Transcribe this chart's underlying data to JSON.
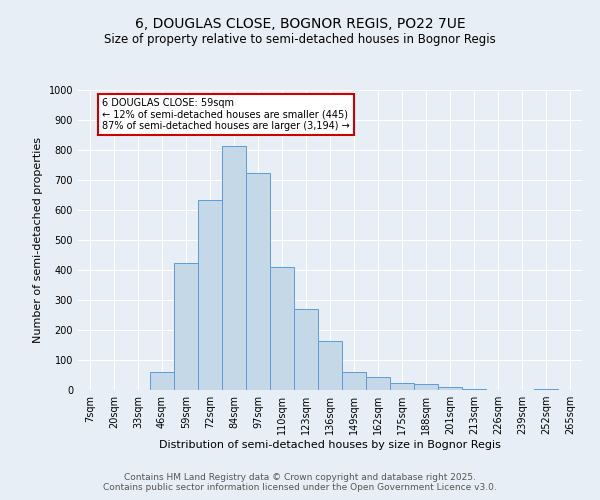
{
  "title": "6, DOUGLAS CLOSE, BOGNOR REGIS, PO22 7UE",
  "subtitle": "Size of property relative to semi-detached houses in Bognor Regis",
  "xlabel": "Distribution of semi-detached houses by size in Bognor Regis",
  "ylabel": "Number of semi-detached properties",
  "categories": [
    "7sqm",
    "20sqm",
    "33sqm",
    "46sqm",
    "59sqm",
    "72sqm",
    "84sqm",
    "97sqm",
    "110sqm",
    "123sqm",
    "136sqm",
    "149sqm",
    "162sqm",
    "175sqm",
    "188sqm",
    "201sqm",
    "213sqm",
    "226sqm",
    "239sqm",
    "252sqm",
    "265sqm"
  ],
  "values": [
    0,
    0,
    0,
    60,
    425,
    635,
    815,
    725,
    410,
    270,
    165,
    60,
    45,
    25,
    20,
    10,
    5,
    0,
    0,
    5,
    0
  ],
  "bar_color": "#c5d8e8",
  "bar_edge_color": "#5b9bd5",
  "highlight_index": 4,
  "annotation_text": "6 DOUGLAS CLOSE: 59sqm\n← 12% of semi-detached houses are smaller (445)\n87% of semi-detached houses are larger (3,194) →",
  "annotation_box_color": "#ffffff",
  "annotation_box_edge_color": "#cc0000",
  "ylim": [
    0,
    1000
  ],
  "yticks": [
    0,
    100,
    200,
    300,
    400,
    500,
    600,
    700,
    800,
    900,
    1000
  ],
  "background_color": "#e8eef5",
  "plot_background": "#e8eef5",
  "footer_line1": "Contains HM Land Registry data © Crown copyright and database right 2025.",
  "footer_line2": "Contains public sector information licensed under the Open Government Licence v3.0.",
  "title_fontsize": 10,
  "subtitle_fontsize": 8.5,
  "axis_label_fontsize": 8,
  "tick_fontsize": 7,
  "annotation_fontsize": 7,
  "footer_fontsize": 6.5
}
